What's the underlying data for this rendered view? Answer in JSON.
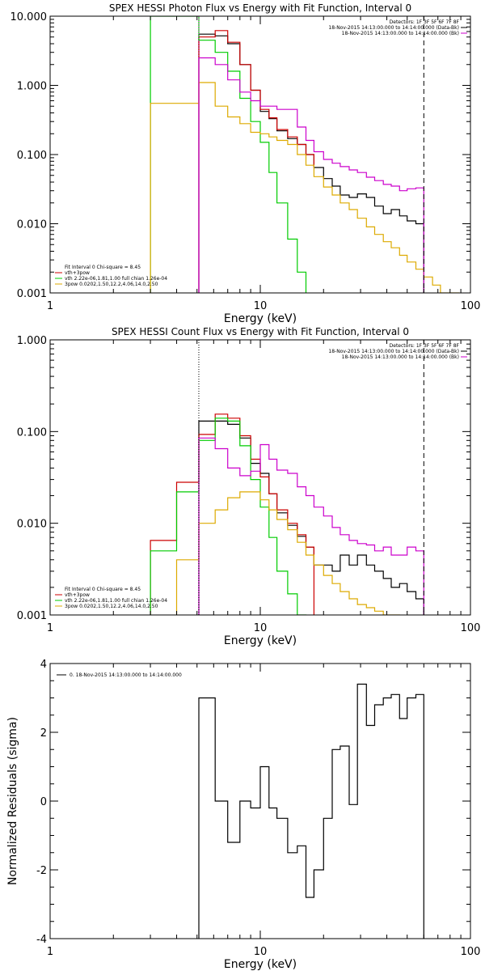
{
  "chart_data": [
    {
      "type": "line",
      "title": "SPEX HESSI Photon Flux vs Energy with Fit Function, Interval 0",
      "xlabel": "Energy (keV)",
      "ylabel": "",
      "xscale": "log",
      "yscale": "log",
      "xlim": [
        1,
        100
      ],
      "ylim": [
        0.001,
        10
      ],
      "xticks": [
        "1",
        "10",
        "100"
      ],
      "yticks": [
        "0.001",
        "0.010",
        "0.100",
        "1.000",
        "10.000"
      ],
      "legend_top_right": [
        {
          "text": "Detectors: 1F 3F 5F 6F 7F 8F",
          "color": ""
        },
        {
          "text": "18-Nov-2015 14:13:00.000 to 14:14:00.000 (Data-Bk)",
          "color": "#000000"
        },
        {
          "text": "18-Nov-2015 14:13:00.000 to 14:14:00.000 (Bk)",
          "color": "#cc00cc"
        }
      ],
      "legend_bottom_left": [
        {
          "text": "Fit Interval 0   Chi-square = 8.45",
          "color": ""
        },
        {
          "text": "vth+3pow",
          "color": "#cc0000"
        },
        {
          "text": "vth 2.22e-06,1.81,1.00   full chian 1.26e-04",
          "color": "#00cc00"
        },
        {
          "text": "3pow 0.0202,1.50,12.2,4.06,14.0,2.50",
          "color": "#ddaa00"
        }
      ],
      "series": [
        {
          "name": "18-Nov-2015 14:13:00.000 to 14:14:00.000 (Data-Bk)",
          "color": "#000000",
          "edges": [
            5.1,
            6.1,
            7.0,
            8.0,
            9.0,
            10.0,
            11.0,
            12.0,
            13.5,
            15.0,
            16.5,
            18.0,
            20.0,
            22.0,
            24.0,
            26.5,
            29.0,
            32.0,
            35.0,
            38.5,
            42.0,
            46.0,
            50.0,
            55.0,
            60.0
          ],
          "values": [
            5.5,
            5.2,
            4.0,
            2.0,
            0.85,
            0.42,
            0.33,
            0.22,
            0.17,
            0.14,
            0.1,
            0.065,
            0.045,
            0.035,
            0.026,
            0.024,
            0.027,
            0.024,
            0.018,
            0.014,
            0.016,
            0.013,
            0.011,
            0.01
          ]
        },
        {
          "name": "vth+3pow",
          "color": "#cc0000",
          "edges": [
            5.1,
            6.1,
            7.0,
            8.0,
            9.0,
            10.0,
            11.0,
            12.0,
            13.5,
            15.0,
            16.5,
            18.0
          ],
          "values": [
            5.0,
            6.2,
            4.2,
            2.0,
            0.85,
            0.45,
            0.34,
            0.23,
            0.18,
            0.14,
            0.1,
            0.065
          ]
        },
        {
          "name": "vth",
          "color": "#00cc00",
          "edges": [
            3.0,
            5.1,
            6.1,
            7.0,
            8.0,
            9.0,
            10.0,
            11.0,
            12.0,
            13.5,
            15.0,
            16.5
          ],
          "values": [
            10.0,
            4.5,
            3.0,
            1.6,
            0.65,
            0.3,
            0.15,
            0.055,
            0.02,
            0.006,
            0.002,
            0.001
          ]
        },
        {
          "name": "3pow",
          "color": "#ddaa00",
          "edges": [
            3.0,
            5.1,
            6.1,
            7.0,
            8.0,
            9.0,
            10.0,
            11.0,
            12.0,
            13.5,
            15.0,
            16.5,
            18.0,
            20.0,
            22.0,
            24.0,
            26.5,
            29.0,
            32.0,
            35.0,
            38.5,
            42.0,
            46.0,
            50.0,
            55.0,
            60.0,
            66.0,
            72.0,
            80.0,
            88.0
          ],
          "values": [
            0.55,
            1.1,
            0.5,
            0.35,
            0.28,
            0.21,
            0.2,
            0.18,
            0.16,
            0.14,
            0.1,
            0.07,
            0.048,
            0.034,
            0.026,
            0.02,
            0.016,
            0.012,
            0.009,
            0.007,
            0.0055,
            0.0045,
            0.0035,
            0.0028,
            0.0022,
            0.0017,
            0.0013,
            0.001,
            0.001
          ]
        },
        {
          "name": "18-Nov-2015 14:13:00.000 to 14:14:00.000 (Bk)",
          "color": "#cc00cc",
          "edges": [
            5.1,
            6.1,
            7.0,
            8.0,
            9.0,
            10.0,
            11.0,
            12.0,
            13.5,
            15.0,
            16.5,
            18.0,
            20.0,
            22.0,
            24.0,
            26.5,
            29.0,
            32.0,
            35.0,
            38.5,
            42.0,
            46.0,
            50.0,
            55.0,
            60.0
          ],
          "values": [
            2.5,
            2.0,
            1.2,
            0.8,
            0.6,
            0.5,
            0.5,
            0.45,
            0.45,
            0.25,
            0.16,
            0.11,
            0.085,
            0.075,
            0.067,
            0.06,
            0.055,
            0.047,
            0.042,
            0.037,
            0.035,
            0.03,
            0.032,
            0.033
          ]
        }
      ],
      "vlines": [
        {
          "x": 5.1,
          "style": "dotted",
          "color": "#cc00cc"
        },
        {
          "x": 60.0,
          "style": "dashed",
          "color": "#000000"
        }
      ]
    },
    {
      "type": "line",
      "title": "SPEX HESSI Count Flux vs Energy with Fit Function, Interval 0",
      "xlabel": "Energy (keV)",
      "ylabel": "",
      "xscale": "log",
      "yscale": "log",
      "xlim": [
        1,
        100
      ],
      "ylim": [
        0.001,
        1
      ],
      "xticks": [
        "1",
        "10",
        "100"
      ],
      "yticks": [
        "0.001",
        "0.010",
        "0.100",
        "1.000"
      ],
      "legend_top_right": [
        {
          "text": "Detectors: 1F 3F 5F 6F 7F 8F",
          "color": ""
        },
        {
          "text": "18-Nov-2015 14:13:00.000 to 14:14:00.000 (Data-Bk)",
          "color": "#000000"
        },
        {
          "text": "18-Nov-2015 14:13:00.000 to 14:14:00.000 (Bk)",
          "color": "#cc00cc"
        }
      ],
      "legend_bottom_left": [
        {
          "text": "Fit Interval 0   Chi-square = 8.45",
          "color": ""
        },
        {
          "text": "vth+3pow",
          "color": "#cc0000"
        },
        {
          "text": "vth 2.22e-06,1.81,1.00   full chian 1.26e-04",
          "color": "#00cc00"
        },
        {
          "text": "3pow 0.0202,1.50,12.2,4.06,14.0,2.50",
          "color": "#ddaa00"
        }
      ],
      "series": [
        {
          "name": "18-Nov-2015 14:13:00.000 to 14:14:00.000 (Data-Bk)",
          "color": "#000000",
          "edges": [
            5.1,
            6.1,
            7.0,
            8.0,
            9.0,
            10.0,
            11.0,
            12.0,
            13.5,
            15.0,
            16.5,
            18.0,
            20.0,
            22.0,
            24.0,
            26.5,
            29.0,
            32.0,
            35.0,
            38.5,
            42.0,
            46.0,
            50.0,
            55.0,
            60.0
          ],
          "values": [
            0.13,
            0.13,
            0.12,
            0.085,
            0.045,
            0.035,
            0.021,
            0.013,
            0.0095,
            0.0072,
            0.0055,
            0.0035,
            0.0035,
            0.003,
            0.0045,
            0.0035,
            0.0045,
            0.0035,
            0.003,
            0.0025,
            0.002,
            0.0022,
            0.0018,
            0.0015
          ]
        },
        {
          "name": "vth+3pow",
          "color": "#cc0000",
          "edges": [
            3.0,
            4.0,
            5.1,
            6.1,
            7.0,
            8.0,
            9.0,
            10.0,
            11.0,
            12.0,
            13.5,
            15.0,
            16.5,
            18.0
          ],
          "values": [
            0.0065,
            0.028,
            0.093,
            0.155,
            0.14,
            0.09,
            0.05,
            0.032,
            0.021,
            0.014,
            0.01,
            0.0075,
            0.0055
          ]
        },
        {
          "name": "vth",
          "color": "#00cc00",
          "edges": [
            3.0,
            4.0,
            5.1,
            6.1,
            7.0,
            8.0,
            9.0,
            10.0,
            11.0,
            12.0,
            13.5,
            15.0,
            16.5
          ],
          "values": [
            0.005,
            0.022,
            0.08,
            0.14,
            0.13,
            0.07,
            0.03,
            0.015,
            0.007,
            0.003,
            0.0017,
            0.001
          ]
        },
        {
          "name": "3pow",
          "color": "#ddaa00",
          "edges": [
            4.0,
            5.1,
            6.1,
            7.0,
            8.0,
            9.0,
            10.0,
            11.0,
            12.0,
            13.5,
            15.0,
            16.5,
            18.0,
            20.0,
            22.0,
            24.0,
            26.5,
            29.0,
            32.0,
            35.0,
            38.5,
            42.0,
            46.0
          ],
          "values": [
            0.004,
            0.01,
            0.014,
            0.019,
            0.022,
            0.022,
            0.018,
            0.014,
            0.011,
            0.0085,
            0.0062,
            0.0045,
            0.0035,
            0.0027,
            0.0022,
            0.0018,
            0.0015,
            0.0013,
            0.0012,
            0.0011,
            0.001,
            0.001
          ]
        },
        {
          "name": "18-Nov-2015 14:13:00.000 to 14:14:00.000 (Bk)",
          "color": "#cc00cc",
          "edges": [
            5.1,
            6.1,
            7.0,
            8.0,
            9.0,
            10.0,
            11.0,
            12.0,
            13.5,
            15.0,
            16.5,
            18.0,
            20.0,
            22.0,
            24.0,
            26.5,
            29.0,
            32.0,
            35.0,
            38.5,
            42.0,
            46.0,
            50.0,
            55.0,
            60.0
          ],
          "values": [
            0.085,
            0.065,
            0.04,
            0.033,
            0.037,
            0.072,
            0.05,
            0.038,
            0.035,
            0.025,
            0.02,
            0.015,
            0.012,
            0.009,
            0.0075,
            0.0065,
            0.006,
            0.0058,
            0.005,
            0.0055,
            0.0045,
            0.0045,
            0.0055,
            0.005
          ]
        }
      ],
      "vlines": [
        {
          "x": 5.1,
          "style": "dotted",
          "color": "#000000"
        },
        {
          "x": 60.0,
          "style": "dashed",
          "color": "#000000"
        }
      ]
    },
    {
      "type": "line",
      "title": "",
      "xlabel": "Energy (keV)",
      "ylabel": "Normalized Residuals (sigma)",
      "xscale": "log",
      "yscale": "linear",
      "xlim": [
        1,
        100
      ],
      "ylim": [
        -4,
        4
      ],
      "xticks": [
        "1",
        "10",
        "100"
      ],
      "yticks": [
        "-4",
        "-2",
        "0",
        "2",
        "4"
      ],
      "legend_top_left": [
        {
          "text": "0. 18-Nov-2015 14:13:00.000 to 14:14:00.000",
          "color": "#000000"
        }
      ],
      "series": [
        {
          "name": "0. 18-Nov-2015 14:13:00.000 to 14:14:00.000",
          "color": "#000000",
          "edges": [
            5.1,
            6.1,
            7.0,
            8.0,
            9.0,
            10.0,
            11.0,
            12.0,
            13.5,
            15.0,
            16.5,
            18.0,
            20.0,
            22.0,
            24.0,
            26.5,
            29.0,
            32.0,
            35.0,
            38.5,
            42.0,
            46.0,
            50.0,
            55.0,
            60.0
          ],
          "values": [
            3.0,
            0.0,
            -1.2,
            0.0,
            -0.2,
            1.0,
            -0.2,
            -0.5,
            -1.5,
            -1.3,
            -2.8,
            -2.0,
            -0.5,
            1.5,
            1.6,
            -0.1,
            3.4,
            2.2,
            2.8,
            3.0,
            3.1,
            2.4,
            3.0,
            3.1
          ],
          "drop_to": -4
        }
      ],
      "vlines": []
    }
  ]
}
